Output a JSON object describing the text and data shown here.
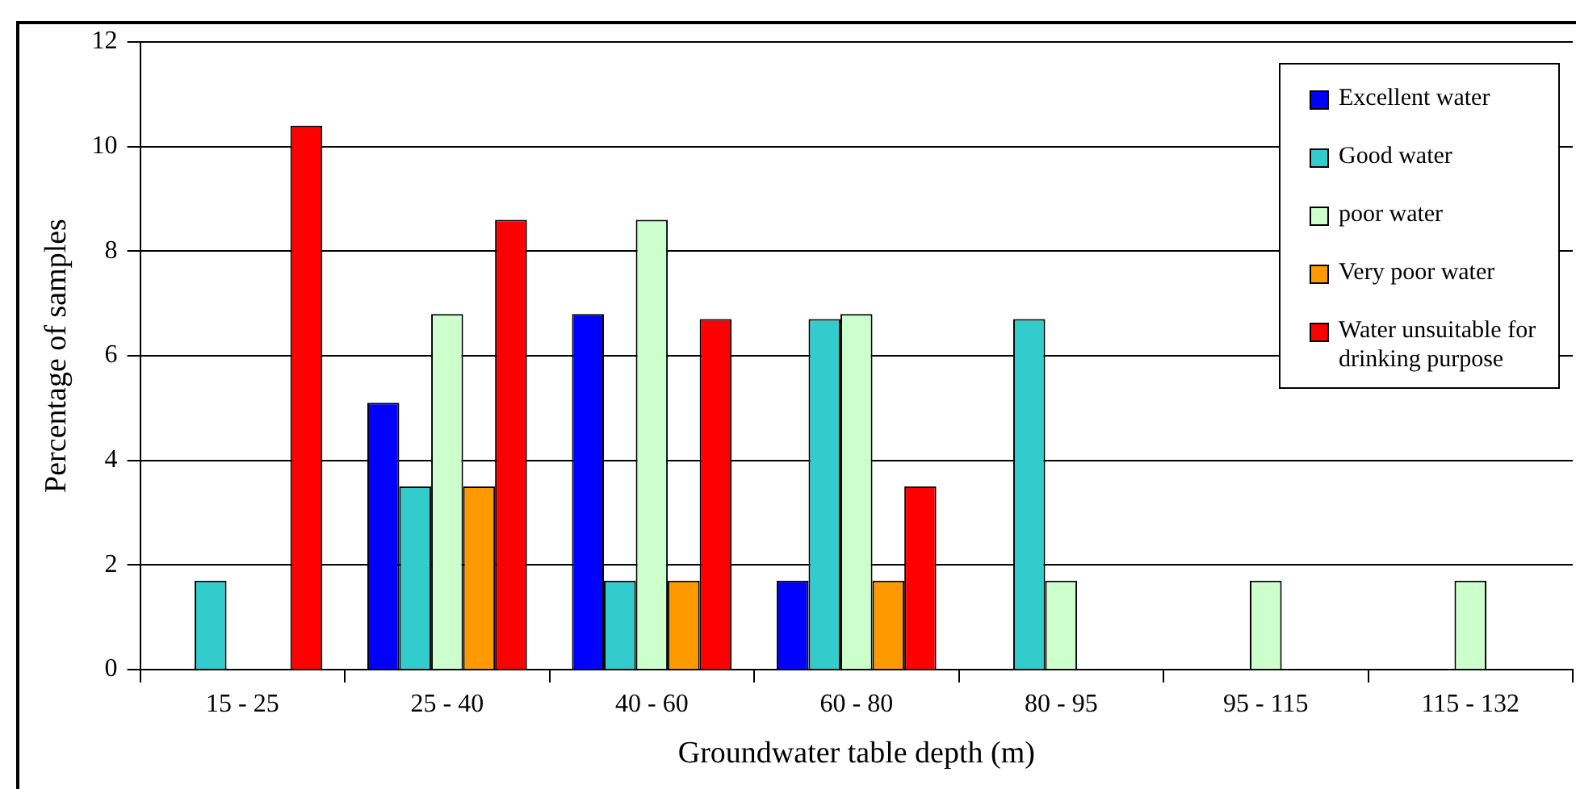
{
  "chart_data": {
    "type": "bar",
    "xlabel": "Groundwater table depth (m)",
    "ylabel": "Percentage of samples",
    "categories": [
      "15 - 25",
      "25 - 40",
      "40 - 60",
      "60 - 80",
      "80 - 95",
      "95 - 115",
      "115 - 132"
    ],
    "series": [
      {
        "name": "Excellent water",
        "color": "#0000ff",
        "values": [
          null,
          5.1,
          6.8,
          1.7,
          null,
          null,
          null
        ]
      },
      {
        "name": "Good water",
        "color": "#33cccc",
        "values": [
          1.7,
          3.5,
          1.7,
          6.7,
          6.7,
          null,
          null
        ]
      },
      {
        "name": "poor water",
        "color": "#ccffcc",
        "values": [
          null,
          6.8,
          8.6,
          6.8,
          1.7,
          1.7,
          1.7
        ]
      },
      {
        "name": "Very poor water",
        "color": "#ff9900",
        "values": [
          null,
          3.5,
          1.7,
          1.7,
          null,
          null,
          null
        ]
      },
      {
        "name": "Water unsuitable for drinking purpose",
        "color": "#ff0000",
        "values": [
          10.4,
          8.6,
          6.7,
          3.5,
          null,
          null,
          null
        ]
      }
    ],
    "ylim": [
      0,
      12
    ],
    "yticks": [
      0,
      2,
      4,
      6,
      8,
      10,
      12
    ],
    "grid": "y",
    "legend": "top right"
  }
}
